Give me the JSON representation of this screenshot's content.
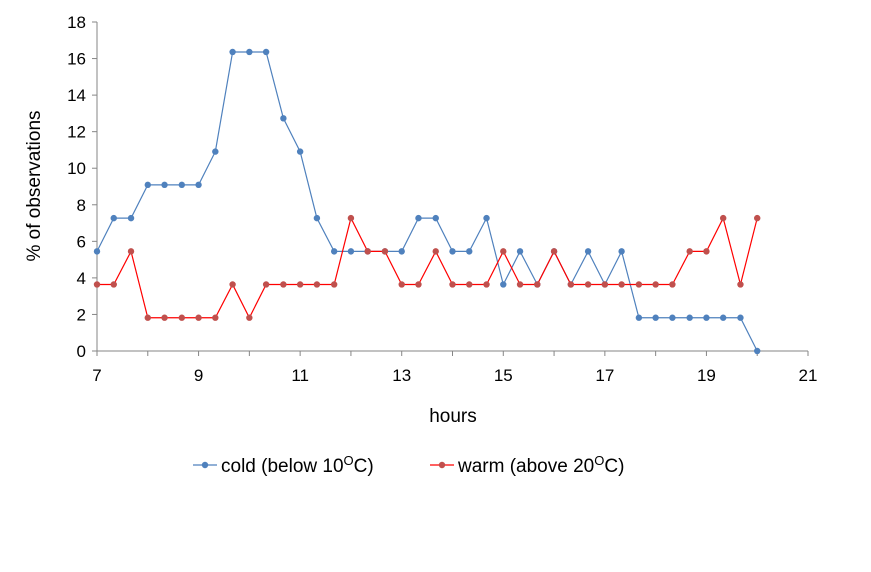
{
  "chart_data": {
    "type": "line",
    "title": "",
    "xlabel": "hours",
    "ylabel": "% of observations",
    "xlim": [
      7,
      21
    ],
    "ylim": [
      0,
      18
    ],
    "xticks": [
      7,
      9,
      11,
      13,
      15,
      17,
      19,
      21
    ],
    "yticks": [
      0,
      2,
      4,
      6,
      8,
      10,
      12,
      14,
      16,
      18
    ],
    "grid": false,
    "legend_placement": "bottom",
    "x": [
      7,
      7.33,
      7.67,
      8,
      8.33,
      8.67,
      9,
      9.33,
      9.67,
      10,
      10.33,
      10.67,
      11,
      11.33,
      11.67,
      12,
      12.33,
      12.67,
      13,
      13.33,
      13.67,
      14,
      14.33,
      14.67,
      15,
      15.33,
      15.67,
      16,
      16.33,
      16.67,
      17,
      17.33,
      17.67,
      18,
      18.33,
      18.67,
      19,
      19.33,
      19.67,
      20
    ],
    "series": [
      {
        "name": "cold (below 10°C)",
        "legend_prefix": "cold (below 10",
        "legend_sup": "O",
        "legend_suffix": "C)",
        "color": "#4f81bd",
        "values": [
          5.45,
          7.27,
          7.27,
          9.09,
          9.09,
          9.09,
          9.09,
          10.91,
          16.36,
          16.36,
          16.36,
          12.73,
          10.91,
          7.27,
          5.45,
          5.45,
          5.45,
          5.45,
          5.45,
          7.27,
          7.27,
          5.45,
          5.45,
          7.27,
          3.64,
          5.45,
          3.64,
          5.45,
          3.64,
          5.45,
          3.64,
          5.45,
          1.82,
          1.82,
          1.82,
          1.82,
          1.82,
          1.82,
          1.82,
          0
        ]
      },
      {
        "name": "warm (above 20°C)",
        "legend_prefix": "warm (above 20",
        "legend_sup": "O",
        "legend_suffix": "C)",
        "color": "#c0504d",
        "line_color": "#ff0000",
        "values": [
          3.64,
          3.64,
          5.45,
          1.82,
          1.82,
          1.82,
          1.82,
          1.82,
          3.64,
          1.82,
          3.64,
          3.64,
          3.64,
          3.64,
          3.64,
          7.27,
          5.45,
          5.45,
          3.64,
          3.64,
          5.45,
          3.64,
          3.64,
          3.64,
          5.45,
          3.64,
          3.64,
          5.45,
          3.64,
          3.64,
          3.64,
          3.64,
          3.64,
          3.64,
          3.64,
          5.45,
          5.45,
          7.27,
          3.64,
          7.27
        ]
      }
    ]
  }
}
